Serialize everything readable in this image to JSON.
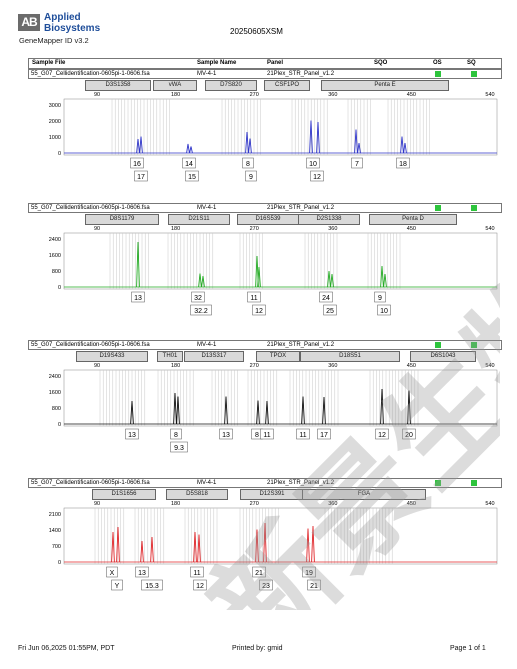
{
  "app": {
    "logo_mark": "AB",
    "brand_line1": "Applied",
    "brand_line2": "Biosystems",
    "product": "GeneMapper ID v3.2",
    "title": "20250605XSM"
  },
  "columns": {
    "sample_file": "Sample File",
    "sample_name": "Sample Name",
    "panel": "Panel",
    "sqo": "SQO",
    "os": "OS",
    "sq": "SQ"
  },
  "colors": {
    "status_ok": "#2dc43c",
    "blue_dye": "#2f35c9",
    "green_dye": "#22aa22",
    "black_dye": "#111111",
    "red_dye": "#e0262a",
    "ladder_bg": "#d9d9d9"
  },
  "x_axis_ticks": [
    "90",
    "180",
    "270",
    "360",
    "450",
    "540"
  ],
  "panels": [
    {
      "sample_file": "55_G07_Cellidentification-0605pi-1-0606.fsa",
      "sample_name": "MV-4-1",
      "panel": "21Plex_STR_Panel_v1.2",
      "markers": [
        "D3S1358",
        "vWA",
        "D7S820",
        "CSF1PO",
        "Penta E"
      ],
      "y_ticks": [
        "3000",
        "2000",
        "1000",
        "0"
      ],
      "alleles_top": [
        "16",
        "14",
        "8",
        "10",
        "7",
        "18"
      ],
      "alleles_bottom": [
        "17",
        "15",
        "9",
        "12"
      ]
    },
    {
      "sample_file": "55_G07_Cellidentification-0605pi-1-0606.fsa",
      "sample_name": "MV-4-1",
      "panel": "21Plex_STR_Panel_v1.2",
      "markers": [
        "D8S1179",
        "D21S11",
        "D16S539",
        "D2S1338",
        "Penta D"
      ],
      "y_ticks": [
        "2400",
        "1600",
        "800",
        "0"
      ],
      "alleles_top": [
        "13",
        "32",
        "11",
        "24",
        "9"
      ],
      "alleles_bottom": [
        "32.2",
        "12",
        "25",
        "10"
      ]
    },
    {
      "sample_file": "55_G07_Cellidentification-0605pi-1-0606.fsa",
      "sample_name": "MV-4-1",
      "panel": "21Plex_STR_Panel_v1.2",
      "markers": [
        "D19S433",
        "TH01",
        "D13S317",
        "TPOX",
        "D18S51",
        "D6S1043"
      ],
      "y_ticks": [
        "2400",
        "1600",
        "800",
        "0"
      ],
      "alleles_top": [
        "13",
        "8",
        "13",
        "8",
        "11",
        "11",
        "17",
        "12",
        "20"
      ],
      "alleles_bottom": [
        "9.3"
      ]
    },
    {
      "sample_file": "55_G07_Cellidentification-0605pi-1-0606.fsa",
      "sample_name": "MV-4-1",
      "panel": "21Plex_STR_Panel_v1.2",
      "markers": [
        "D1S1656",
        "D5S818",
        "D12S391",
        "FGA"
      ],
      "y_ticks": [
        "2100",
        "1400",
        "700",
        "0"
      ],
      "alleles_top": [
        "X",
        "13",
        "11",
        "21",
        "19"
      ],
      "alleles_bottom": [
        "Y",
        "15.3",
        "12",
        "23",
        "21"
      ]
    }
  ],
  "footer": {
    "printed_at": "Fri Jun 06,2025 01:55PM, PDT",
    "printed_by": "Printed by: gmid",
    "page": "Page 1 of 1"
  },
  "watermark": {
    "text": "新景生物"
  }
}
